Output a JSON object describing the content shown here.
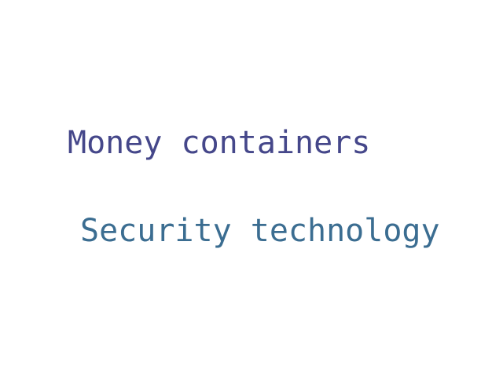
{
  "words": [
    {
      "text": "Money containers",
      "color": "#45478a"
    },
    {
      "text": "Security technology",
      "color": "#3b6d91"
    }
  ]
}
